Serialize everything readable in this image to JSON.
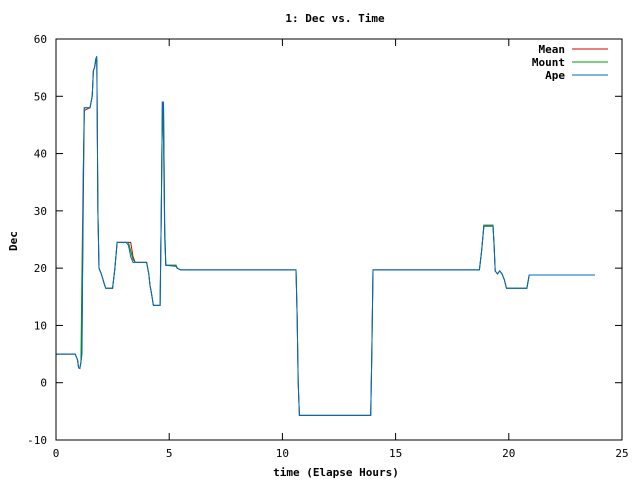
{
  "chart_data": {
    "type": "line",
    "title": "1: Dec vs. Time",
    "xlabel": "time (Elapse Hours)",
    "ylabel": "Dec",
    "xlim": [
      0,
      25
    ],
    "ylim": [
      -10,
      60
    ],
    "xticks": [
      0,
      5,
      10,
      15,
      20,
      25
    ],
    "yticks": [
      -10,
      0,
      10,
      20,
      30,
      40,
      50,
      60
    ],
    "grid": false,
    "legend_position": "top-right",
    "series": [
      {
        "name": "Mean",
        "color": "#d40000",
        "points": [
          [
            0.0,
            5.0
          ],
          [
            0.85,
            5.0
          ],
          [
            0.95,
            4.0
          ],
          [
            1.0,
            2.6
          ],
          [
            1.05,
            2.5
          ],
          [
            1.1,
            3.5
          ],
          [
            1.15,
            8.0
          ],
          [
            1.2,
            30.0
          ],
          [
            1.25,
            47.5
          ],
          [
            1.5,
            48.0
          ],
          [
            1.6,
            50.0
          ],
          [
            1.65,
            54.5
          ],
          [
            1.7,
            55.0
          ],
          [
            1.75,
            56.0
          ],
          [
            1.8,
            56.5
          ],
          [
            1.85,
            30.0
          ],
          [
            1.9,
            20.0
          ],
          [
            2.0,
            19.0
          ],
          [
            2.15,
            17.0
          ],
          [
            2.2,
            16.5
          ],
          [
            2.5,
            16.5
          ],
          [
            2.6,
            20.0
          ],
          [
            2.7,
            24.5
          ],
          [
            3.3,
            24.5
          ],
          [
            3.4,
            22.0
          ],
          [
            3.5,
            21.0
          ],
          [
            4.0,
            21.0
          ],
          [
            4.1,
            19.0
          ],
          [
            4.15,
            17.0
          ],
          [
            4.2,
            16.0
          ],
          [
            4.3,
            13.5
          ],
          [
            4.5,
            13.5
          ],
          [
            4.6,
            13.5
          ],
          [
            4.65,
            30.0
          ],
          [
            4.7,
            49.0
          ],
          [
            4.75,
            49.0
          ],
          [
            4.8,
            27.0
          ],
          [
            4.85,
            20.5
          ],
          [
            5.3,
            20.5
          ],
          [
            5.35,
            20.0
          ],
          [
            5.5,
            19.7
          ],
          [
            10.6,
            19.7
          ],
          [
            10.65,
            12.0
          ],
          [
            10.7,
            0.0
          ],
          [
            10.75,
            -5.7
          ],
          [
            13.9,
            -5.7
          ],
          [
            13.95,
            5.0
          ],
          [
            14.0,
            19.7
          ],
          [
            18.7,
            19.7
          ],
          [
            18.8,
            23.0
          ],
          [
            18.9,
            27.5
          ],
          [
            19.3,
            27.5
          ],
          [
            19.35,
            24.0
          ],
          [
            19.4,
            19.5
          ],
          [
            19.5,
            19.0
          ],
          [
            19.6,
            19.5
          ],
          [
            19.7,
            19.0
          ],
          [
            19.8,
            18.0
          ],
          [
            19.9,
            16.5
          ],
          [
            20.8,
            16.5
          ],
          [
            20.9,
            18.8
          ],
          [
            23.8,
            18.8
          ]
        ]
      },
      {
        "name": "Mount",
        "color": "#009900",
        "points": [
          [
            0.0,
            5.0
          ],
          [
            0.85,
            5.0
          ],
          [
            0.95,
            4.0
          ],
          [
            1.0,
            2.6
          ],
          [
            1.05,
            2.5
          ],
          [
            1.1,
            3.5
          ],
          [
            1.15,
            20.0
          ],
          [
            1.2,
            36.5
          ],
          [
            1.25,
            48.0
          ],
          [
            1.5,
            48.0
          ],
          [
            1.6,
            50.0
          ],
          [
            1.65,
            54.5
          ],
          [
            1.7,
            55.0
          ],
          [
            1.75,
            56.0
          ],
          [
            1.8,
            56.5
          ],
          [
            1.85,
            30.0
          ],
          [
            1.9,
            20.0
          ],
          [
            2.0,
            19.0
          ],
          [
            2.15,
            17.0
          ],
          [
            2.2,
            16.5
          ],
          [
            2.5,
            16.5
          ],
          [
            2.6,
            20.0
          ],
          [
            2.7,
            24.5
          ],
          [
            3.2,
            24.5
          ],
          [
            3.4,
            21.5
          ],
          [
            3.5,
            21.0
          ],
          [
            4.0,
            21.0
          ],
          [
            4.1,
            19.0
          ],
          [
            4.15,
            17.0
          ],
          [
            4.2,
            16.0
          ],
          [
            4.3,
            13.5
          ],
          [
            4.5,
            13.5
          ],
          [
            4.6,
            13.5
          ],
          [
            4.65,
            30.0
          ],
          [
            4.7,
            49.0
          ],
          [
            4.75,
            42.0
          ],
          [
            4.8,
            25.0
          ],
          [
            4.85,
            20.5
          ],
          [
            5.3,
            20.5
          ],
          [
            5.35,
            20.0
          ],
          [
            5.5,
            19.7
          ],
          [
            10.6,
            19.7
          ],
          [
            10.65,
            12.0
          ],
          [
            10.7,
            0.0
          ],
          [
            10.75,
            -5.7
          ],
          [
            13.9,
            -5.7
          ],
          [
            13.95,
            5.0
          ],
          [
            14.0,
            19.7
          ],
          [
            18.7,
            19.7
          ],
          [
            18.8,
            23.0
          ],
          [
            18.9,
            27.5
          ],
          [
            19.3,
            27.5
          ],
          [
            19.35,
            24.0
          ],
          [
            19.4,
            19.5
          ],
          [
            19.5,
            19.0
          ],
          [
            19.6,
            19.5
          ],
          [
            19.7,
            19.0
          ],
          [
            19.8,
            18.0
          ],
          [
            19.9,
            16.5
          ],
          [
            20.8,
            16.5
          ],
          [
            20.9,
            18.8
          ],
          [
            23.8,
            18.8
          ]
        ]
      },
      {
        "name": "Ape",
        "color": "#0066cc",
        "points": [
          [
            0.0,
            5.0
          ],
          [
            0.85,
            5.0
          ],
          [
            0.95,
            4.0
          ],
          [
            1.0,
            2.6
          ],
          [
            1.05,
            2.5
          ],
          [
            1.1,
            3.5
          ],
          [
            1.15,
            5.0
          ],
          [
            1.2,
            35.0
          ],
          [
            1.25,
            48.0
          ],
          [
            1.5,
            48.0
          ],
          [
            1.6,
            50.0
          ],
          [
            1.65,
            54.5
          ],
          [
            1.7,
            55.0
          ],
          [
            1.75,
            56.5
          ],
          [
            1.8,
            57.0
          ],
          [
            1.85,
            30.0
          ],
          [
            1.9,
            20.0
          ],
          [
            2.0,
            19.0
          ],
          [
            2.15,
            17.0
          ],
          [
            2.2,
            16.5
          ],
          [
            2.5,
            16.5
          ],
          [
            2.6,
            20.0
          ],
          [
            2.7,
            24.5
          ],
          [
            3.1,
            24.5
          ],
          [
            3.2,
            24.0
          ],
          [
            3.3,
            22.0
          ],
          [
            3.4,
            21.0
          ],
          [
            4.0,
            21.0
          ],
          [
            4.1,
            19.0
          ],
          [
            4.15,
            17.0
          ],
          [
            4.2,
            16.0
          ],
          [
            4.3,
            13.5
          ],
          [
            4.5,
            13.5
          ],
          [
            4.6,
            13.5
          ],
          [
            4.65,
            30.0
          ],
          [
            4.7,
            49.0
          ],
          [
            4.75,
            49.0
          ],
          [
            4.8,
            27.0
          ],
          [
            4.85,
            20.5
          ],
          [
            5.3,
            20.3
          ],
          [
            5.35,
            20.0
          ],
          [
            5.5,
            19.7
          ],
          [
            10.6,
            19.7
          ],
          [
            10.65,
            12.0
          ],
          [
            10.7,
            0.0
          ],
          [
            10.75,
            -5.7
          ],
          [
            13.9,
            -5.7
          ],
          [
            13.95,
            5.0
          ],
          [
            14.0,
            19.7
          ],
          [
            18.7,
            19.7
          ],
          [
            18.8,
            23.0
          ],
          [
            18.9,
            27.3
          ],
          [
            19.3,
            27.3
          ],
          [
            19.35,
            24.0
          ],
          [
            19.4,
            19.5
          ],
          [
            19.5,
            19.0
          ],
          [
            19.6,
            19.5
          ],
          [
            19.7,
            19.0
          ],
          [
            19.8,
            18.0
          ],
          [
            19.9,
            16.5
          ],
          [
            20.8,
            16.5
          ],
          [
            20.9,
            18.8
          ],
          [
            23.8,
            18.8
          ]
        ]
      }
    ]
  }
}
